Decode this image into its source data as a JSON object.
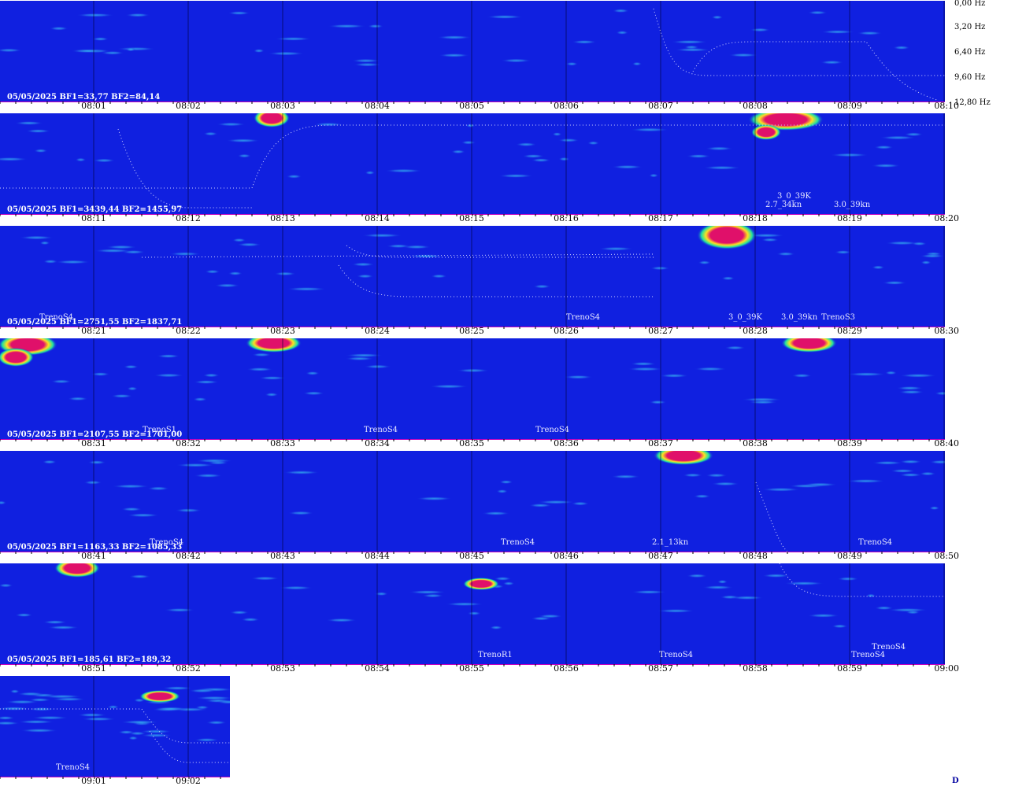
{
  "chart_data": {
    "type": "heatmap",
    "freq_axis": [
      "0,00 Hz",
      "3,20 Hz",
      "6,40 Hz",
      "9,60 Hz",
      "12,80 Hz"
    ],
    "rows": [
      {
        "info": "05/05/2025 BF1=33,77 BF2=84,14",
        "ticks": [
          "08:01",
          "08:02",
          "08:03",
          "08:04",
          "08:05",
          "08:06",
          "08:07",
          "08:08",
          "08:09",
          "08:10"
        ],
        "annotations": []
      },
      {
        "info": "05/05/2025 BF1=3439,44 BF2=1455,97",
        "ticks": [
          "08:11",
          "08:12",
          "08:13",
          "08:14",
          "08:15",
          "08:16",
          "08:17",
          "08:18",
          "08:19",
          "08:20"
        ],
        "annotations": [
          "3_0_39K",
          "2.7_34kn",
          "3.0_39kn"
        ]
      },
      {
        "info": "05/05/2025 BF1=2751,55 BF2=1837,71",
        "ticks": [
          "08:21",
          "08:22",
          "08:23",
          "08:24",
          "08:25",
          "08:26",
          "08:27",
          "08:28",
          "08:29",
          "08:30"
        ],
        "annotations": [
          "TrenoS4",
          "TrenoS4",
          "3_0_39K",
          "3.0_39kn",
          "TrenoS3"
        ]
      },
      {
        "info": "05/05/2025 BF1=2107,55 BF2=1701,00",
        "ticks": [
          "08:31",
          "08:32",
          "08:33",
          "08:34",
          "08:35",
          "08:36",
          "08:37",
          "08:38",
          "08:39",
          "08:40"
        ],
        "annotations": [
          "TrenoS1",
          "TrenoS4",
          "TrenoS4"
        ]
      },
      {
        "info": "05/05/2025 BF1=1163,33 BF2=1085,33",
        "ticks": [
          "08:41",
          "08:42",
          "08:43",
          "08:44",
          "08:45",
          "08:46",
          "08:47",
          "08:48",
          "08:49",
          "08:50"
        ],
        "annotations": [
          "TrenoS4",
          "TrenoS4",
          "2.1_13kn",
          "TrenoS4"
        ]
      },
      {
        "info": "05/05/2025 BF1=185,61 BF2=189,32",
        "ticks": [
          "08:51",
          "08:52",
          "08:53",
          "08:54",
          "08:55",
          "08:56",
          "08:57",
          "08:58",
          "08:59",
          "09:00"
        ],
        "annotations": [
          "TrenoR1",
          "TrenoS4",
          "TrenoS4",
          "TrenoS4"
        ]
      },
      {
        "info": "",
        "ticks": [
          "09:01",
          "09:02"
        ],
        "annotations": [
          "TrenoS4"
        ]
      }
    ]
  },
  "footer": {
    "corner_mark": "D"
  },
  "colors": {
    "background": "#1020e0",
    "hot": "#e0106a",
    "warm": "#ffe020",
    "mid": "#20e0a0"
  }
}
